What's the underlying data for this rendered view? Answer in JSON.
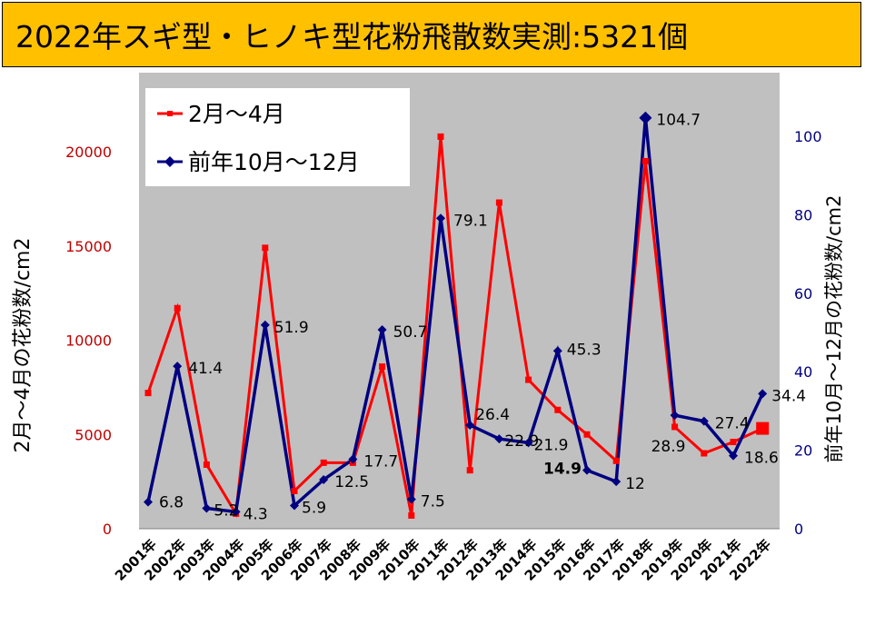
{
  "title": "2022年スギ型・ヒノキ型花粉飛散数実測:5321個",
  "colors": {
    "title_bg": "#FFC000",
    "plot_bg": "#C0C0C0",
    "series_red": "#FF0000",
    "series_navy": "#000080",
    "left_axis": "#C00000",
    "right_axis": "#000080"
  },
  "chart_data": {
    "type": "line",
    "categories": [
      "2001年",
      "2002年",
      "2003年",
      "2004年",
      "2005年",
      "2006年",
      "2007年",
      "2008年",
      "2009年",
      "2010年",
      "2011年",
      "2012年",
      "2013年",
      "2014年",
      "2015年",
      "2016年",
      "2017年",
      "2018年",
      "2019年",
      "2020年",
      "2021年",
      "2022年"
    ],
    "ylabel_left": "2月～4月の花粉数/cm2",
    "ylabel_right": "前年10月～12月の花粉数/cm2",
    "ylim_left": [
      0,
      25000
    ],
    "ylim_right": [
      0,
      125
    ],
    "left_ticks": [
      "0",
      "5000",
      "10000",
      "15000",
      "20000"
    ],
    "right_ticks": [
      "0",
      "20",
      "40",
      "60",
      "80",
      "100"
    ],
    "legend_placement": "top-left",
    "series": [
      {
        "name": "2月～4月",
        "axis": "left",
        "marker": "square",
        "values": [
          7200,
          11700,
          3400,
          800,
          14900,
          2000,
          3500,
          3500,
          8600,
          700,
          20800,
          3100,
          17300,
          7900,
          6300,
          5000,
          3600,
          19500,
          5400,
          4000,
          4600,
          5321
        ]
      },
      {
        "name": "前年10月～12月",
        "axis": "right",
        "marker": "diamond",
        "values": [
          6.8,
          41.4,
          5.2,
          4.3,
          51.9,
          5.9,
          12.5,
          17.7,
          50.7,
          7.5,
          79.1,
          26.4,
          22.9,
          21.9,
          45.3,
          14.9,
          12,
          104.7,
          28.9,
          27.4,
          18.6,
          34.4
        ],
        "labels": [
          "6.8",
          "41.4",
          "5.2",
          "4.3",
          "51.9",
          "5.9",
          "12.5",
          "17.7",
          "50.7",
          "7.5",
          "79.1",
          "26.4",
          "22.9",
          "21.9",
          "45.3",
          "14.9",
          "12",
          "104.7",
          "28.9",
          "27.4",
          "18.6",
          "34.4"
        ]
      }
    ]
  }
}
